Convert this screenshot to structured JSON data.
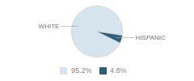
{
  "chart_data": {
    "type": "pie",
    "categories": [
      "WHITE",
      "HISPANIC"
    ],
    "values": [
      95.2,
      4.8
    ],
    "value_labels": [
      "95.2%",
      "4.8%"
    ],
    "colors": [
      "#d6e4ee",
      "#2e5f7a"
    ],
    "legend": "bottom"
  }
}
